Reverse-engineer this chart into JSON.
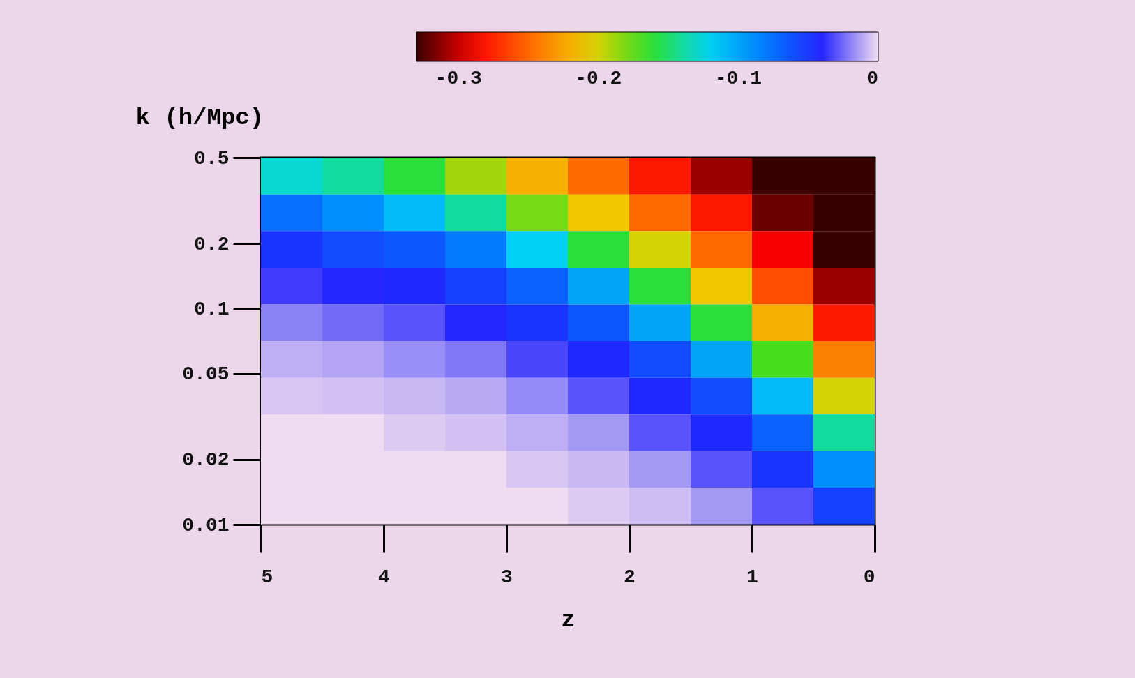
{
  "chart_data": {
    "type": "heatmap",
    "xlabel": "z",
    "ylabel": "k (h/Mpc)",
    "x": [
      4.75,
      4.25,
      3.75,
      3.25,
      2.75,
      2.25,
      1.75,
      1.25,
      0.75,
      0.25
    ],
    "y": [
      0.411,
      0.278,
      0.188,
      0.127,
      0.0859,
      0.0581,
      0.0393,
      0.0266,
      0.018,
      0.0122
    ],
    "xlim": [
      5,
      0
    ],
    "xticks": [
      5,
      4,
      3,
      2,
      1,
      0
    ],
    "ylim": [
      0.01,
      0.5
    ],
    "yticks": [
      0.01,
      0.02,
      0.05,
      0.1,
      0.2,
      0.5
    ],
    "log": "y",
    "clim": [
      -0.33,
      0
    ],
    "cticks": [
      -0.3,
      -0.2,
      -0.1,
      0
    ],
    "grid": false,
    "cells": [
      [
        -0.13,
        -0.14,
        -0.16,
        -0.19,
        -0.22,
        -0.25,
        -0.28,
        -0.31,
        -0.33,
        -0.33
      ],
      [
        -0.075,
        -0.09,
        -0.11,
        -0.14,
        -0.18,
        -0.21,
        -0.25,
        -0.28,
        -0.32,
        -0.33
      ],
      [
        -0.05,
        -0.06,
        -0.065,
        -0.08,
        -0.12,
        -0.16,
        -0.2,
        -0.25,
        -0.29,
        -0.33
      ],
      [
        -0.035,
        -0.04,
        -0.045,
        -0.055,
        -0.07,
        -0.1,
        -0.16,
        -0.21,
        -0.26,
        -0.31
      ],
      [
        -0.02,
        -0.025,
        -0.03,
        -0.04,
        -0.05,
        -0.065,
        -0.1,
        -0.16,
        -0.22,
        -0.28
      ],
      [
        -0.01,
        -0.012,
        -0.017,
        -0.022,
        -0.033,
        -0.045,
        -0.06,
        -0.1,
        -0.17,
        -0.24
      ],
      [
        -0.005,
        -0.006,
        -0.008,
        -0.011,
        -0.018,
        -0.03,
        -0.045,
        -0.06,
        -0.11,
        -0.2
      ],
      [
        0,
        0,
        -0.004,
        -0.006,
        -0.01,
        -0.015,
        -0.03,
        -0.045,
        -0.07,
        -0.14
      ],
      [
        0,
        0,
        0,
        0,
        -0.005,
        -0.008,
        -0.015,
        -0.03,
        -0.05,
        -0.09
      ],
      [
        0,
        0,
        0,
        0,
        0,
        -0.004,
        -0.007,
        -0.015,
        -0.03,
        -0.055
      ]
    ]
  }
}
